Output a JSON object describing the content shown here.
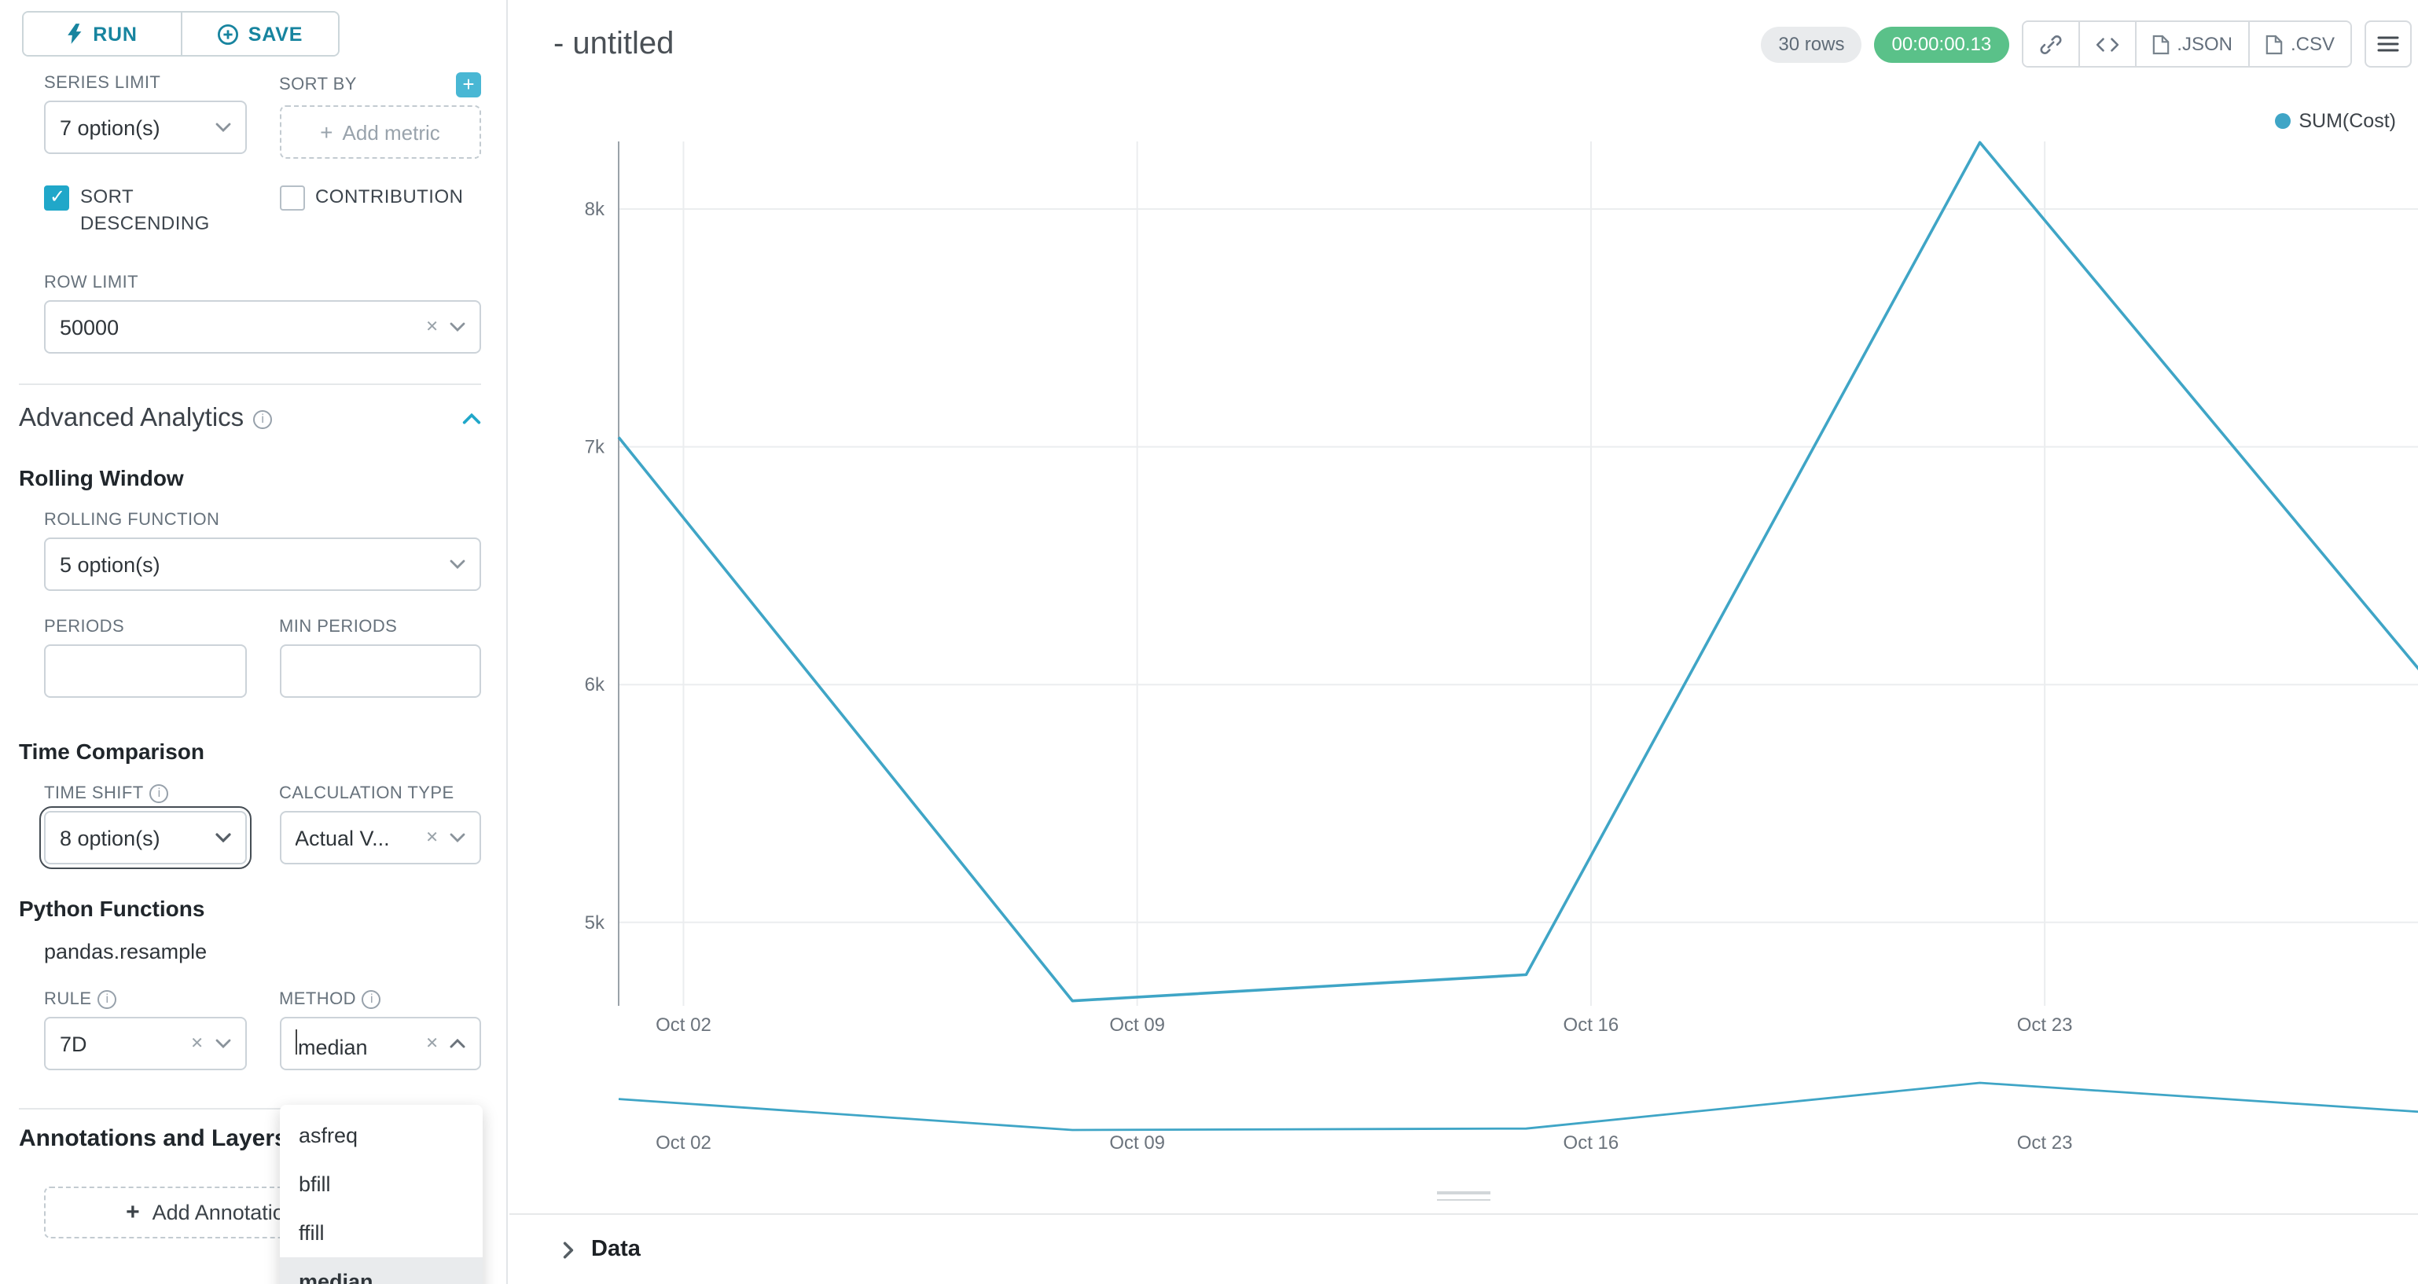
{
  "colors": {
    "primary": "#20a7c9",
    "line": "#3fa5c6",
    "success": "#5ac189"
  },
  "icons": {
    "run-icon": "lightning-bolt",
    "save-icon": "plus-circle",
    "add-metric-plus-icon": "plus",
    "info-icon": "info-circle",
    "collapse-chevron-icon": "chevron-up",
    "copy-link-icon": "link",
    "embed-code-icon": "code-brackets",
    "export-file-icon": "document",
    "more-menu-icon": "hamburger",
    "legend-dot-icon": "circle",
    "expand-chevron-icon": "chevron-right"
  },
  "sidebar": {
    "run_label": "RUN",
    "save_label": "SAVE",
    "series_limit": {
      "label": "SERIES LIMIT",
      "value": "7 option(s)"
    },
    "sort_by": {
      "label": "SORT BY",
      "placeholder": "Add metric"
    },
    "sort_descending": {
      "label": "SORT DESCENDING",
      "checked": true
    },
    "contribution": {
      "label": "CONTRIBUTION",
      "checked": false
    },
    "row_limit": {
      "label": "ROW LIMIT",
      "value": "50000"
    },
    "advanced_analytics": {
      "title": "Advanced Analytics"
    },
    "rolling_window": {
      "title": "Rolling Window",
      "rolling_function": {
        "label": "ROLLING FUNCTION",
        "value": "5 option(s)"
      },
      "periods": {
        "label": "PERIODS",
        "value": ""
      },
      "min_periods": {
        "label": "MIN PERIODS",
        "value": ""
      }
    },
    "time_comparison": {
      "title": "Time Comparison",
      "time_shift": {
        "label": "TIME SHIFT",
        "value": "8 option(s)"
      },
      "calculation_type": {
        "label": "CALCULATION TYPE",
        "value": "Actual V..."
      }
    },
    "python_functions": {
      "title": "Python Functions",
      "subtitle": "pandas.resample",
      "rule": {
        "label": "RULE",
        "value": "7D"
      },
      "method": {
        "label": "METHOD",
        "value": "median",
        "options": [
          "asfreq",
          "bfill",
          "ffill",
          "median"
        ],
        "selected": "median"
      }
    },
    "annotations": {
      "title": "Annotations and Layers",
      "add_button": "Add Annotation Layer"
    }
  },
  "header": {
    "title": "- untitled",
    "rows_badge": "30 rows",
    "timer_badge": "00:00:00.13",
    "json_label": ".JSON",
    "csv_label": ".CSV"
  },
  "chart_data": {
    "type": "line",
    "color": "#3fa5c6",
    "title": "",
    "legend": {
      "label": "SUM(Cost)",
      "position": "top-right"
    },
    "series": [
      {
        "name": "SUM(Cost)",
        "x": [
          "Oct 01",
          "Oct 08",
          "Oct 15",
          "Oct 22",
          "Oct 29"
        ],
        "values": [
          7040,
          4670,
          4780,
          8280,
          5990
        ]
      }
    ],
    "x_tick_labels": [
      "Oct 02",
      "Oct 09",
      "Oct 16",
      "Oct 23"
    ],
    "y_ticks": [
      5000,
      6000,
      7000,
      8000
    ],
    "y_tick_labels": [
      "5k",
      "6k",
      "7k",
      "8k"
    ],
    "ylim": [
      4650,
      8450
    ],
    "grid": true,
    "mini_chart": true
  },
  "data_panel": {
    "title": "Data"
  }
}
